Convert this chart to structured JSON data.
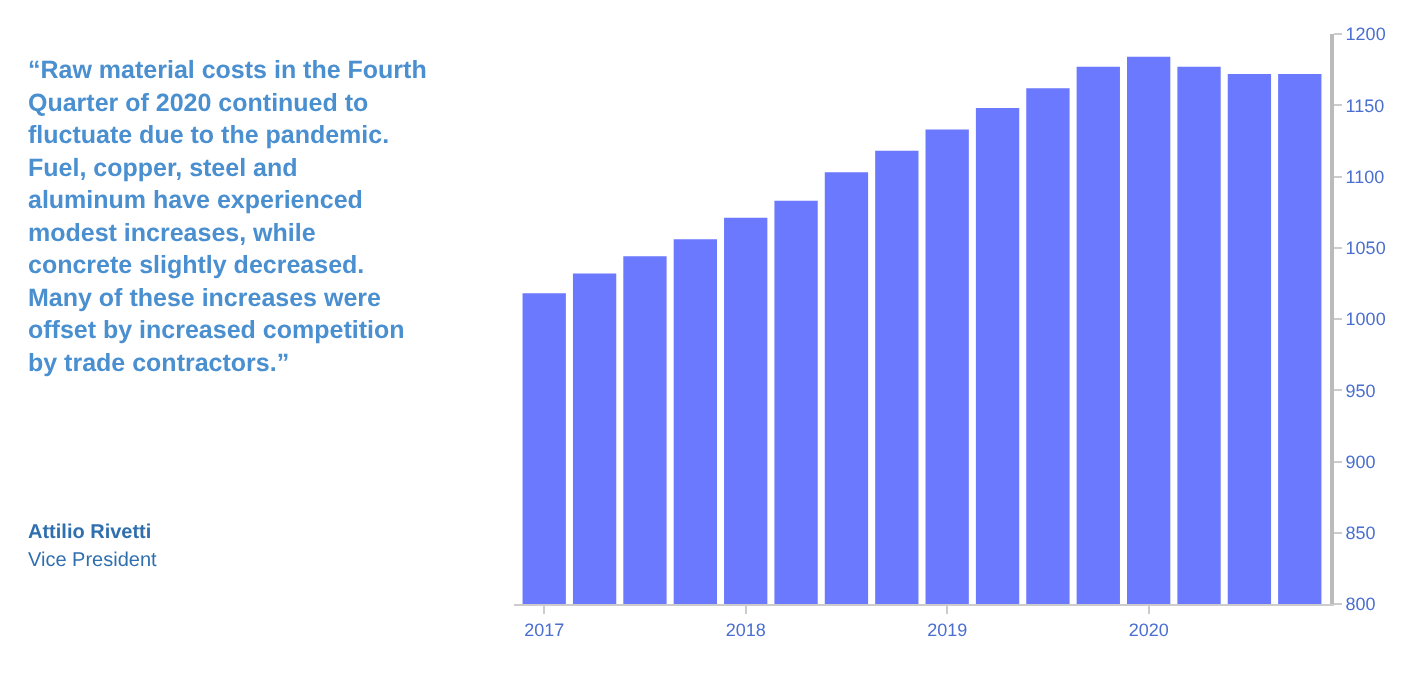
{
  "chart_data": {
    "type": "bar",
    "categories": [
      "2017",
      null,
      null,
      null,
      "2018",
      null,
      null,
      null,
      "2019",
      null,
      null,
      null,
      "2020",
      null,
      null,
      null
    ],
    "values": [
      1018,
      1032,
      1044,
      1056,
      1071,
      1083,
      1103,
      1118,
      1133,
      1148,
      1162,
      1177,
      1184,
      1177,
      1172,
      1172
    ],
    "color": "#6b79ff",
    "ylim": [
      800,
      1200
    ],
    "yticks": [
      800,
      850,
      900,
      950,
      1000,
      1050,
      1100,
      1150,
      1200
    ],
    "annotations": [
      "“Raw material costs in the Fourth\nQuarter of 2020 continued to\nfluctuate due to the pandemic.\nFuel, copper, steel and\naluminum have experienced\nmodest increases, while\nconcrete slightly decreased.\nMany of these increases were\noffset by increased competition\nby trade contractors.”",
      "Attilio Rivetti",
      "Vice President"
    ]
  }
}
